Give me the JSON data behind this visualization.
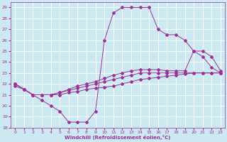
{
  "xlabel": "Windchill (Refroidissement éolien,°C)",
  "background_color": "#cce8f0",
  "grid_color": "#ffffff",
  "line_color": "#993399",
  "xlim": [
    -0.5,
    23.5
  ],
  "ylim": [
    18,
    29.5
  ],
  "xticks": [
    0,
    1,
    2,
    3,
    4,
    5,
    6,
    7,
    8,
    9,
    10,
    11,
    12,
    13,
    14,
    15,
    16,
    17,
    18,
    19,
    20,
    21,
    22,
    23
  ],
  "yticks": [
    18,
    19,
    20,
    21,
    22,
    23,
    24,
    25,
    26,
    27,
    28,
    29
  ],
  "series": [
    {
      "x": [
        0,
        1,
        2,
        3,
        4,
        5,
        6,
        7,
        8,
        9,
        10,
        11,
        12,
        13,
        14,
        15,
        16,
        17,
        18,
        19,
        20,
        21,
        22,
        23
      ],
      "y": [
        22,
        21.5,
        21,
        20.5,
        20,
        19.5,
        18.5,
        18.5,
        18.5,
        19.5,
        26,
        28.5,
        29,
        29,
        29,
        29,
        27,
        26.5,
        26.5,
        26,
        25,
        24.5,
        23.5,
        23
      ]
    },
    {
      "x": [
        0,
        1,
        2,
        3,
        4,
        5,
        6,
        7,
        8,
        9,
        10,
        11,
        12,
        13,
        14,
        15,
        16,
        17,
        18,
        19,
        20,
        21,
        22,
        23
      ],
      "y": [
        22,
        21.5,
        21.0,
        21.0,
        21.0,
        21.2,
        21.5,
        21.8,
        22.0,
        22.2,
        22.5,
        22.8,
        23.0,
        23.2,
        23.3,
        23.3,
        23.3,
        23.2,
        23.2,
        23.2,
        25.0,
        25.0,
        24.5,
        23.2
      ]
    },
    {
      "x": [
        0,
        1,
        2,
        3,
        4,
        5,
        6,
        7,
        8,
        9,
        10,
        11,
        12,
        13,
        14,
        15,
        16,
        17,
        18,
        19,
        20,
        21,
        22,
        23
      ],
      "y": [
        22,
        21.5,
        21.0,
        21.0,
        21.0,
        21.2,
        21.4,
        21.6,
        21.8,
        22.0,
        22.2,
        22.4,
        22.6,
        22.8,
        23.0,
        23.0,
        23.0,
        23.0,
        23.0,
        23.0,
        23.0,
        23.0,
        23.0,
        23.0
      ]
    },
    {
      "x": [
        0,
        1,
        2,
        3,
        4,
        5,
        6,
        7,
        8,
        9,
        10,
        11,
        12,
        13,
        14,
        15,
        16,
        17,
        18,
        19,
        20,
        21,
        22,
        23
      ],
      "y": [
        21.8,
        21.5,
        21.0,
        21.0,
        21.0,
        21.0,
        21.2,
        21.3,
        21.5,
        21.6,
        21.7,
        21.8,
        22.0,
        22.2,
        22.4,
        22.5,
        22.6,
        22.7,
        22.8,
        22.9,
        23.0,
        23.0,
        23.0,
        23.0
      ]
    }
  ]
}
